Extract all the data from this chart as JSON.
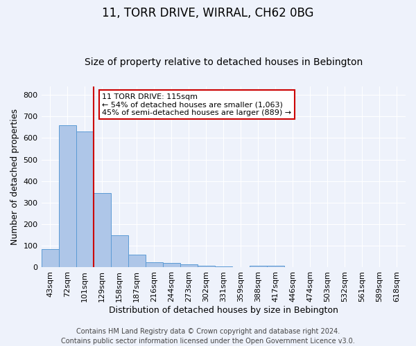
{
  "title1": "11, TORR DRIVE, WIRRAL, CH62 0BG",
  "title2": "Size of property relative to detached houses in Bebington",
  "xlabel": "Distribution of detached houses by size in Bebington",
  "ylabel": "Number of detached properties",
  "categories": [
    "43sqm",
    "72sqm",
    "101sqm",
    "129sqm",
    "158sqm",
    "187sqm",
    "216sqm",
    "244sqm",
    "273sqm",
    "302sqm",
    "331sqm",
    "359sqm",
    "388sqm",
    "417sqm",
    "446sqm",
    "474sqm",
    "503sqm",
    "532sqm",
    "561sqm",
    "589sqm",
    "618sqm"
  ],
  "values": [
    85,
    660,
    630,
    345,
    148,
    58,
    25,
    20,
    13,
    8,
    5,
    0,
    8,
    8,
    0,
    0,
    0,
    0,
    0,
    0,
    0
  ],
  "bar_color": "#aec6e8",
  "bar_edge_color": "#5b9bd5",
  "background_color": "#eef2fb",
  "grid_color": "#ffffff",
  "vline_color": "#cc0000",
  "vline_x_index": 2,
  "annotation_text": "11 TORR DRIVE: 115sqm\n← 54% of detached houses are smaller (1,063)\n45% of semi-detached houses are larger (889) →",
  "annotation_box_color": "#ffffff",
  "annotation_box_edge": "#cc0000",
  "footer1": "Contains HM Land Registry data © Crown copyright and database right 2024.",
  "footer2": "Contains public sector information licensed under the Open Government Licence v3.0.",
  "ylim": [
    0,
    840
  ],
  "yticks": [
    0,
    100,
    200,
    300,
    400,
    500,
    600,
    700,
    800
  ],
  "title1_fontsize": 12,
  "title2_fontsize": 10,
  "axis_label_fontsize": 9,
  "tick_fontsize": 8,
  "footer_fontsize": 7,
  "annotation_fontsize": 8
}
